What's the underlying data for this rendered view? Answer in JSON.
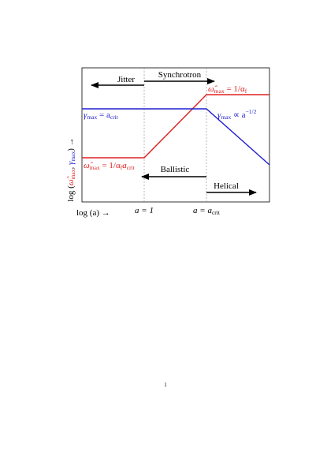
{
  "regions": {
    "jitter": "Jitter",
    "synchrotron": "Synchrotron",
    "ballistic": "Ballistic",
    "helical": "Helical"
  },
  "labels": {
    "omega_high": [
      "ω̂",
      "max",
      " = 1/α",
      "f"
    ],
    "gamma_flat": [
      "γ",
      "max",
      " = a",
      "crit"
    ],
    "omega_low": [
      "ω̂",
      "max",
      " = 1/α",
      "f",
      "a",
      "crit"
    ],
    "gamma_slope": [
      "γ",
      "max",
      " ∝ a",
      "−1/2"
    ]
  },
  "axes": {
    "y_label": [
      "log (",
      "ω̂",
      "max",
      ", ",
      "γ",
      "max",
      ") →"
    ],
    "x_label": "log (a) →",
    "x_ticks": [
      [
        "a = 1"
      ],
      [
        "a = a",
        "crit"
      ]
    ]
  },
  "page_number": "1"
}
